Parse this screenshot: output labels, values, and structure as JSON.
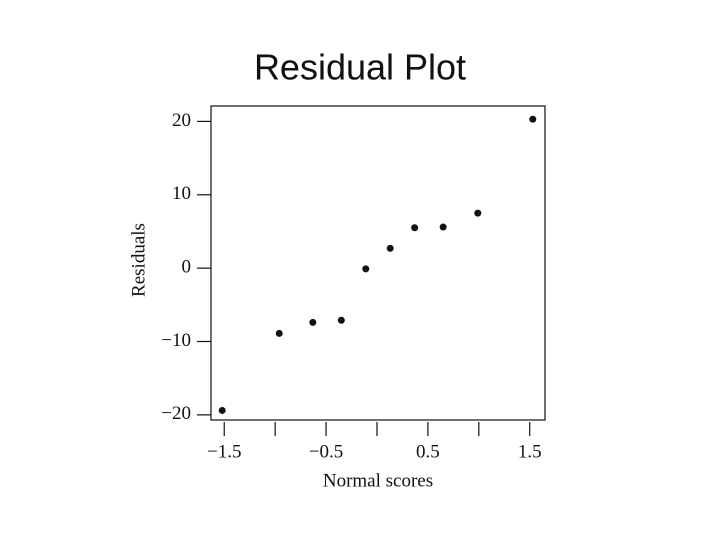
{
  "chart_data": {
    "type": "scatter",
    "title": "Residual Plot",
    "x_label": "Normal scores",
    "y_label": "Residuals",
    "x": [
      -1.52,
      -0.96,
      -0.63,
      -0.35,
      -0.11,
      0.13,
      0.37,
      0.65,
      0.99,
      1.53
    ],
    "values": [
      -19.4,
      -8.9,
      -7.4,
      -7.1,
      -0.1,
      2.7,
      5.5,
      5.6,
      7.5,
      20.3
    ],
    "color": "#111111",
    "xlim": [
      -1.63,
      1.65
    ],
    "ylim": [
      -20.7,
      22.1
    ],
    "xticks": [
      {
        "value": -1.5,
        "label": "−1.5"
      },
      {
        "value": -1.0,
        "label": null
      },
      {
        "value": -0.5,
        "label": "−0.5"
      },
      {
        "value": 0.0,
        "label": null
      },
      {
        "value": 0.5,
        "label": "0.5"
      },
      {
        "value": 1.0,
        "label": null
      },
      {
        "value": 1.5,
        "label": "1.5"
      }
    ],
    "yticks": [
      {
        "value": -20,
        "label": "−20"
      },
      {
        "value": -10,
        "label": "−10"
      },
      0,
      10,
      20
    ],
    "grid": false
  }
}
